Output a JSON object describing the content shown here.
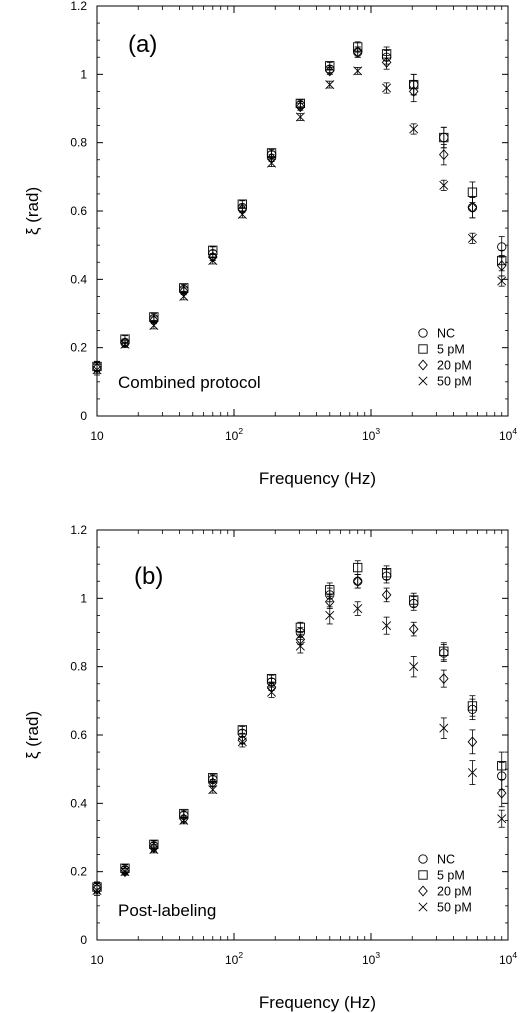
{
  "chart_data": [
    {
      "type": "scatter",
      "panel_label": "(a)",
      "annotation": "Combined protocol",
      "xlabel": "Frequency (Hz)",
      "ylabel": "ξ (rad)",
      "x_scale": "log",
      "xlim": [
        10,
        10000
      ],
      "ylim": [
        0,
        1.2
      ],
      "x_ticks": [
        {
          "base": "10",
          "exp": ""
        },
        {
          "base": "10",
          "exp": "2"
        },
        {
          "base": "10",
          "exp": "3"
        },
        {
          "base": "10",
          "exp": "4"
        }
      ],
      "y_ticks": [
        "0",
        "0.2",
        "0.4",
        "0.6",
        "0.8",
        "1",
        "1.2"
      ],
      "grid": false,
      "legend_position": "bottom-right",
      "x": [
        10,
        16,
        26,
        43,
        70,
        115,
        188,
        305,
        500,
        800,
        1300,
        2050,
        3400,
        5500,
        9000
      ],
      "series": [
        {
          "name": "NC",
          "marker": "circle",
          "values": [
            0.145,
            0.215,
            0.285,
            0.37,
            0.475,
            0.61,
            0.765,
            0.91,
            1.015,
            1.065,
            1.05,
            0.97,
            0.815,
            0.61,
            0.495
          ],
          "errors": [
            0.015,
            0.01,
            0.01,
            0.01,
            0.01,
            0.01,
            0.01,
            0.01,
            0.01,
            0.015,
            0.02,
            0.03,
            0.03,
            0.03,
            0.03
          ]
        },
        {
          "name": "5 pM",
          "marker": "square",
          "values": [
            0.145,
            0.225,
            0.29,
            0.375,
            0.485,
            0.62,
            0.77,
            0.915,
            1.025,
            1.08,
            1.06,
            0.97,
            0.815,
            0.655,
            0.455
          ],
          "errors": [
            0.015,
            0.01,
            0.01,
            0.01,
            0.01,
            0.01,
            0.01,
            0.01,
            0.01,
            0.015,
            0.02,
            0.03,
            0.03,
            0.03,
            0.03
          ]
        },
        {
          "name": "20 pM",
          "marker": "diamond",
          "values": [
            0.14,
            0.215,
            0.28,
            0.365,
            0.465,
            0.605,
            0.755,
            0.905,
            1.01,
            1.065,
            1.035,
            0.95,
            0.765,
            0.61,
            0.44
          ],
          "errors": [
            0.015,
            0.01,
            0.01,
            0.01,
            0.01,
            0.01,
            0.01,
            0.01,
            0.01,
            0.015,
            0.02,
            0.03,
            0.03,
            0.03,
            0.03
          ]
        },
        {
          "name": "50 pM",
          "marker": "x",
          "values": [
            0.135,
            0.21,
            0.265,
            0.35,
            0.455,
            0.59,
            0.74,
            0.875,
            0.97,
            1.01,
            0.96,
            0.84,
            0.675,
            0.52,
            0.395
          ],
          "errors": [
            0.015,
            0.01,
            0.01,
            0.01,
            0.01,
            0.01,
            0.01,
            0.01,
            0.01,
            0.01,
            0.015,
            0.015,
            0.015,
            0.015,
            0.015
          ]
        }
      ]
    },
    {
      "type": "scatter",
      "panel_label": "(b)",
      "annotation": "Post-labeling",
      "xlabel": "Frequency (Hz)",
      "ylabel": "ξ (rad)",
      "x_scale": "log",
      "xlim": [
        10,
        10000
      ],
      "ylim": [
        0,
        1.2
      ],
      "x_ticks": [
        {
          "base": "10",
          "exp": ""
        },
        {
          "base": "10",
          "exp": "2"
        },
        {
          "base": "10",
          "exp": "3"
        },
        {
          "base": "10",
          "exp": "4"
        }
      ],
      "y_ticks": [
        "0",
        "0.2",
        "0.4",
        "0.6",
        "0.8",
        "1",
        "1.2"
      ],
      "grid": false,
      "legend_position": "bottom-right",
      "x": [
        10,
        16,
        26,
        43,
        70,
        115,
        188,
        305,
        500,
        800,
        1300,
        2050,
        3400,
        5500,
        9000
      ],
      "series": [
        {
          "name": "NC",
          "marker": "circle",
          "values": [
            0.155,
            0.205,
            0.275,
            0.365,
            0.47,
            0.605,
            0.755,
            0.9,
            1.01,
            1.05,
            1.065,
            0.985,
            0.84,
            0.675,
            0.48
          ],
          "errors": [
            0.015,
            0.01,
            0.01,
            0.01,
            0.01,
            0.01,
            0.01,
            0.015,
            0.02,
            0.02,
            0.02,
            0.02,
            0.025,
            0.03,
            0.04
          ]
        },
        {
          "name": "5 pM",
          "marker": "square",
          "values": [
            0.155,
            0.21,
            0.28,
            0.37,
            0.475,
            0.615,
            0.765,
            0.915,
            1.025,
            1.09,
            1.075,
            0.995,
            0.845,
            0.685,
            0.51
          ],
          "errors": [
            0.015,
            0.01,
            0.01,
            0.01,
            0.01,
            0.01,
            0.01,
            0.015,
            0.02,
            0.02,
            0.02,
            0.02,
            0.025,
            0.03,
            0.04
          ]
        },
        {
          "name": "20 pM",
          "marker": "diamond",
          "values": [
            0.15,
            0.2,
            0.27,
            0.355,
            0.46,
            0.585,
            0.74,
            0.88,
            0.99,
            1.05,
            1.01,
            0.91,
            0.765,
            0.58,
            0.43
          ],
          "errors": [
            0.015,
            0.01,
            0.01,
            0.01,
            0.01,
            0.01,
            0.01,
            0.015,
            0.02,
            0.02,
            0.02,
            0.02,
            0.025,
            0.035,
            0.04
          ]
        },
        {
          "name": "50 pM",
          "marker": "x",
          "values": [
            0.145,
            0.2,
            0.265,
            0.35,
            0.44,
            0.58,
            0.725,
            0.86,
            0.95,
            0.97,
            0.92,
            0.8,
            0.62,
            0.49,
            0.355
          ],
          "errors": [
            0.015,
            0.01,
            0.01,
            0.01,
            0.01,
            0.015,
            0.015,
            0.02,
            0.025,
            0.02,
            0.025,
            0.03,
            0.03,
            0.035,
            0.025
          ]
        }
      ]
    }
  ]
}
